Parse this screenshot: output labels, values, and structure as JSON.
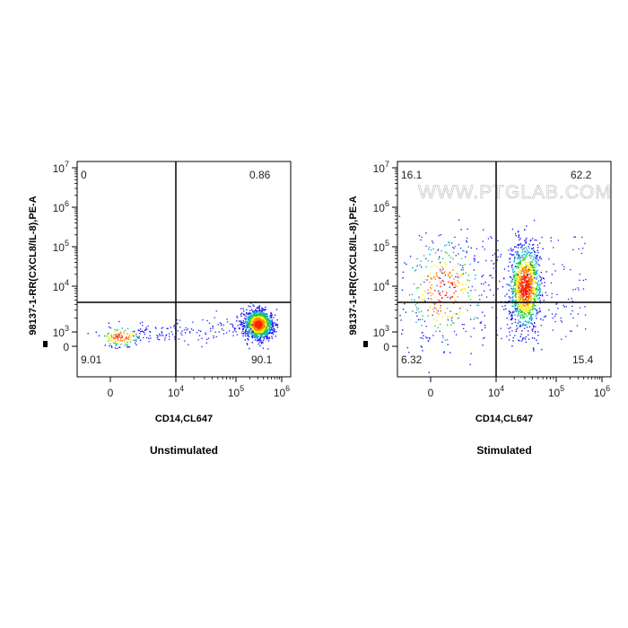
{
  "chart_data": [
    {
      "type": "scatter",
      "title": "Unstimulated",
      "xlabel": "CD14,CL647",
      "ylabel": "98137-1-RR(CXCL8/IL-8),PE-A",
      "x_scale": "biexponential",
      "y_scale": "biexponential",
      "x_ticks": [
        "0",
        "10^4",
        "10^5",
        "10^6"
      ],
      "y_ticks": [
        "0",
        "10^3",
        "10^4",
        "10^5",
        "10^6",
        "10^7"
      ],
      "gate": {
        "x": 10000,
        "y": 4000
      },
      "quadrants": {
        "upper_left": "0",
        "upper_right": "0.86",
        "lower_left": "9.01",
        "lower_right": "90.1"
      },
      "populations": [
        {
          "x_center": 1500,
          "y_center": 700,
          "share": 0.09,
          "spread": "low"
        },
        {
          "x_center": 300000,
          "y_center": 1500,
          "share": 0.9,
          "spread": "tight"
        }
      ],
      "watermark": ""
    },
    {
      "type": "scatter",
      "title": "Stimulated",
      "xlabel": "CD14,CL647",
      "ylabel": "98137-1-RR(CXCL8/IL-8),PE-A",
      "x_scale": "biexponential",
      "y_scale": "biexponential",
      "x_ticks": [
        "0",
        "10^4",
        "10^5",
        "10^6"
      ],
      "y_ticks": [
        "0",
        "10^3",
        "10^4",
        "10^5",
        "10^6",
        "10^7"
      ],
      "gate": {
        "x": 10000,
        "y": 4000
      },
      "quadrants": {
        "upper_left": "16.1",
        "upper_right": "62.2",
        "lower_left": "6.32",
        "lower_right": "15.4"
      },
      "populations": [
        {
          "x_center": 30000,
          "y_center": 10000,
          "share": 0.78,
          "spread": "vertical"
        },
        {
          "x_center": 2000,
          "y_center": 8000,
          "share": 0.22,
          "spread": "wide"
        }
      ],
      "watermark": "WWW.PTGLAB.COM"
    }
  ],
  "colors": {
    "density_low": "#1a1aff",
    "density_mid": "#22cc33",
    "density_high": "#ffee00",
    "density_peak": "#ff2200",
    "gate_line": "#000000"
  }
}
